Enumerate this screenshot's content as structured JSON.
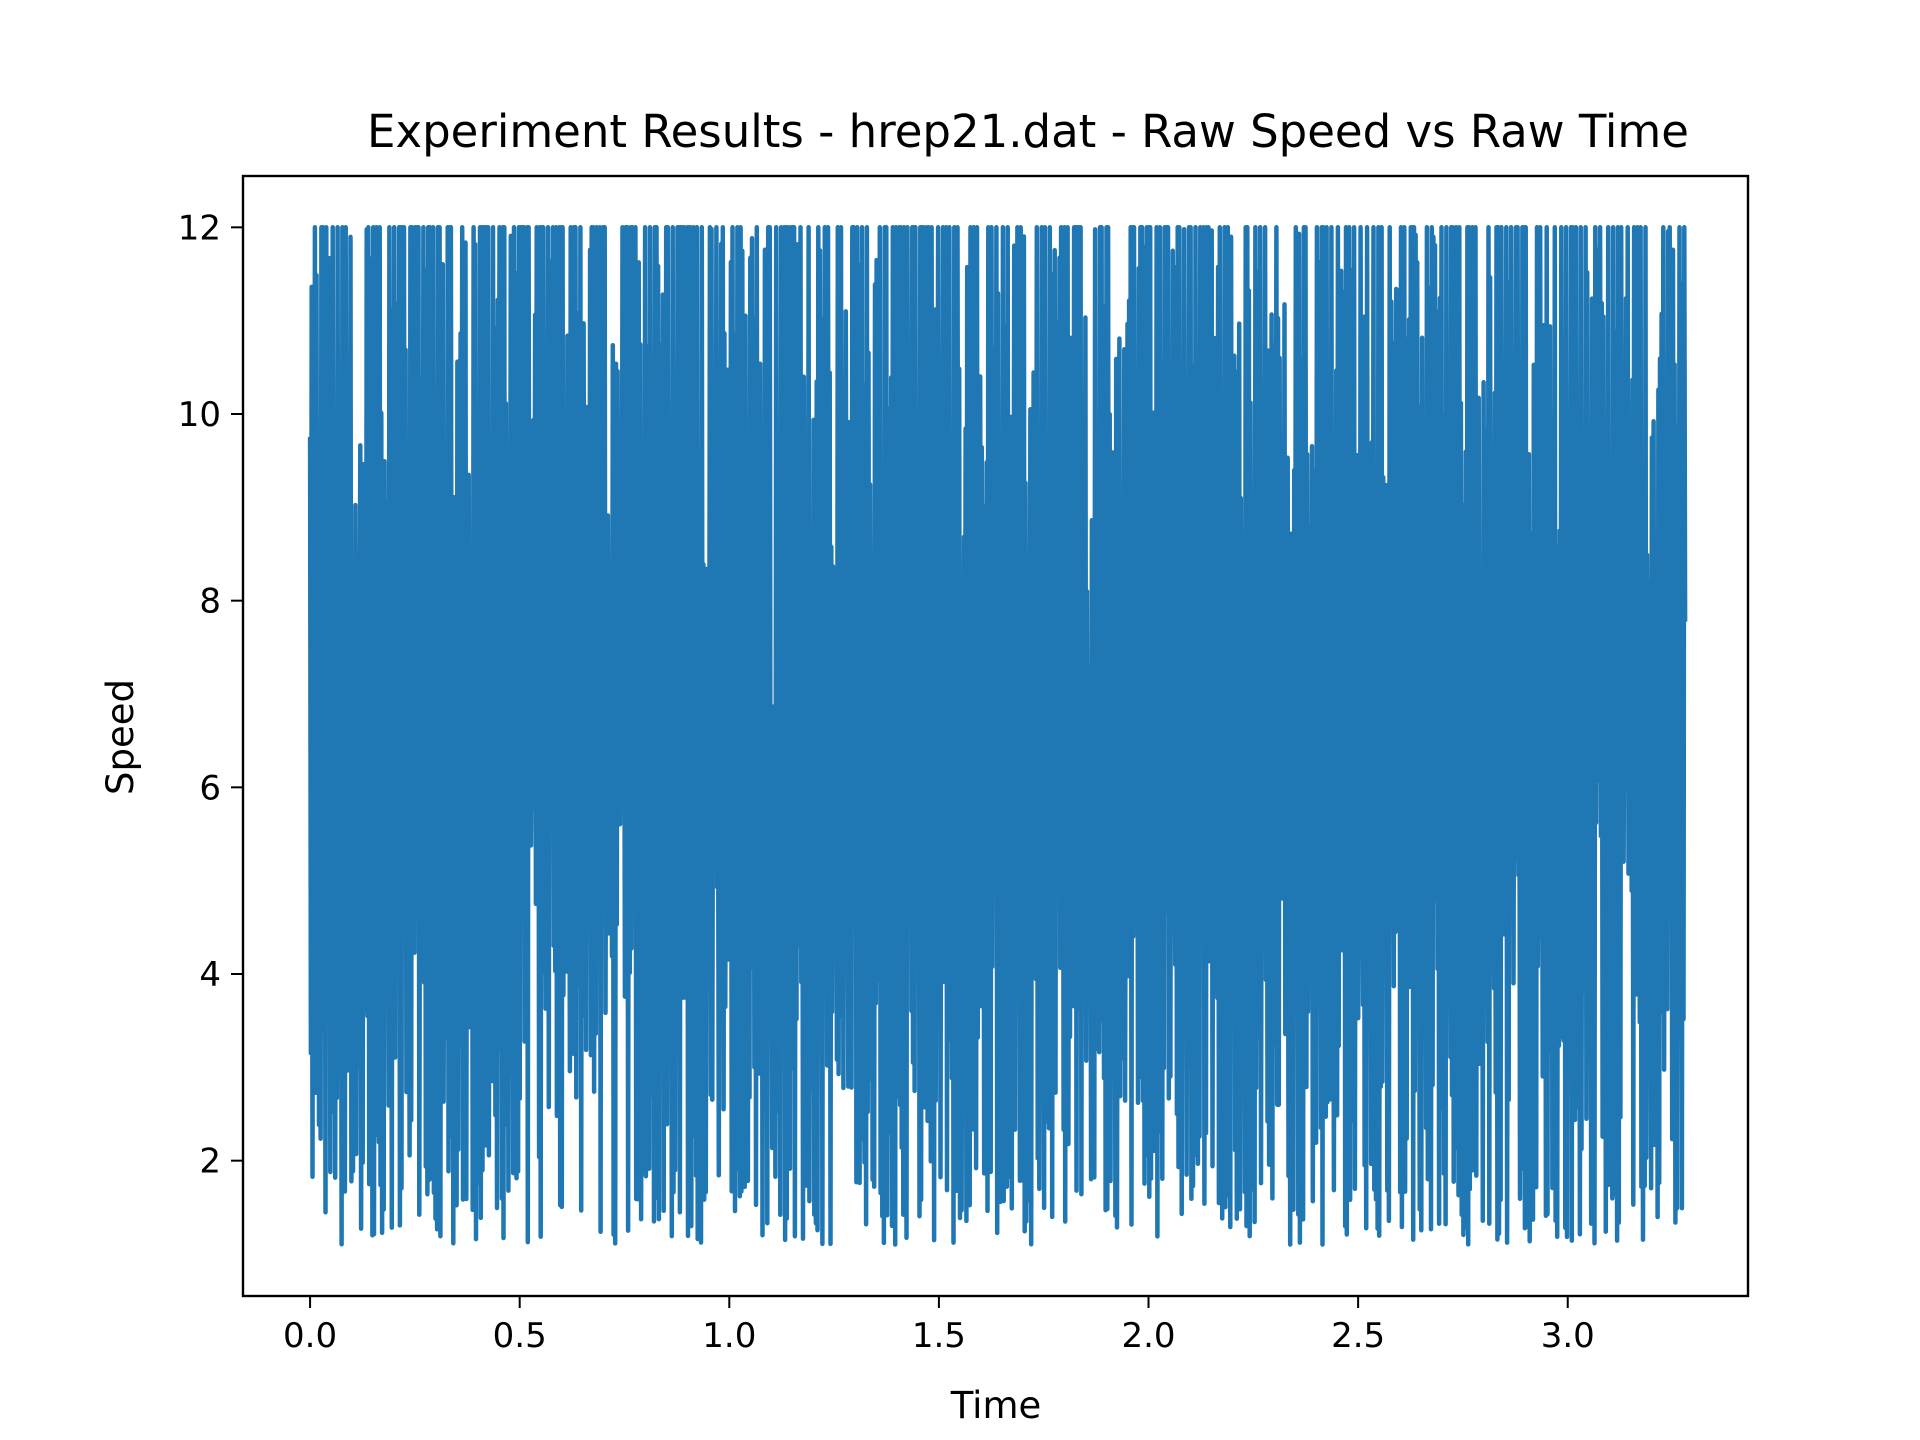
{
  "chart_data": {
    "type": "line",
    "title": "Experiment Results - hrep21.dat - Raw Speed vs Raw Time",
    "xlabel": "Time",
    "ylabel": "Speed",
    "xlim": [
      -0.16,
      3.43
    ],
    "ylim": [
      0.55,
      12.55
    ],
    "xticks": [
      0.0,
      0.5,
      1.0,
      1.5,
      2.0,
      2.5,
      3.0
    ],
    "xtick_labels": [
      "0.0",
      "0.5",
      "1.0",
      "1.5",
      "2.0",
      "2.5",
      "3.0"
    ],
    "yticks": [
      2,
      4,
      6,
      8,
      10,
      12
    ],
    "ytick_labels": [
      "2",
      "4",
      "6",
      "8",
      "10",
      "12"
    ],
    "grid": false,
    "legend": "none",
    "series": [
      {
        "color": "#1f77b4",
        "x_range": [
          0.0,
          3.28
        ],
        "y_range": [
          1.1,
          12.0
        ],
        "sample_points": [
          [
            0.0,
            10.8
          ],
          [
            0.01,
            4.5
          ],
          [
            0.02,
            11.4
          ],
          [
            0.03,
            2.9
          ],
          [
            0.04,
            12.0
          ],
          [
            0.05,
            2.2
          ],
          [
            0.06,
            11.9
          ],
          [
            0.08,
            3.5
          ],
          [
            0.1,
            12.0
          ],
          [
            0.12,
            1.8
          ],
          [
            0.15,
            11.8
          ],
          [
            0.18,
            2.5
          ],
          [
            0.2,
            12.0
          ],
          [
            0.23,
            1.1
          ],
          [
            0.25,
            11.9
          ],
          [
            0.28,
            1.5
          ],
          [
            0.3,
            12.0
          ],
          [
            0.33,
            1.9
          ],
          [
            0.35,
            12.0
          ],
          [
            0.38,
            1.4
          ],
          [
            0.4,
            11.5
          ],
          [
            0.45,
            1.4
          ],
          [
            0.5,
            12.0
          ],
          [
            0.55,
            2.0
          ],
          [
            0.6,
            12.0
          ],
          [
            0.63,
            1.3
          ],
          [
            0.65,
            11.9
          ],
          [
            0.7,
            1.5
          ],
          [
            0.75,
            12.0
          ],
          [
            0.8,
            1.6
          ],
          [
            0.85,
            11.9
          ],
          [
            0.9,
            2.0
          ],
          [
            0.93,
            1.4
          ],
          [
            0.95,
            12.0
          ],
          [
            1.0,
            1.2
          ],
          [
            1.05,
            11.9
          ],
          [
            1.1,
            2.0
          ],
          [
            1.15,
            12.0
          ],
          [
            1.2,
            1.8
          ],
          [
            1.25,
            12.0
          ],
          [
            1.3,
            1.2
          ],
          [
            1.35,
            11.8
          ],
          [
            1.4,
            1.8
          ],
          [
            1.45,
            12.0
          ],
          [
            1.5,
            1.5
          ],
          [
            1.55,
            12.0
          ],
          [
            1.6,
            1.6
          ],
          [
            1.65,
            11.9
          ],
          [
            1.7,
            1.3
          ],
          [
            1.75,
            12.0
          ],
          [
            1.8,
            1.5
          ],
          [
            1.85,
            12.0
          ],
          [
            1.9,
            1.6
          ],
          [
            1.95,
            11.9
          ],
          [
            2.0,
            1.3
          ],
          [
            2.05,
            12.0
          ],
          [
            2.1,
            1.5
          ],
          [
            2.15,
            11.9
          ],
          [
            2.2,
            1.2
          ],
          [
            2.25,
            12.0
          ],
          [
            2.3,
            1.5
          ],
          [
            2.35,
            11.9
          ],
          [
            2.4,
            1.4
          ],
          [
            2.45,
            12.0
          ],
          [
            2.5,
            1.2
          ],
          [
            2.55,
            12.0
          ],
          [
            2.6,
            1.2
          ],
          [
            2.65,
            11.9
          ],
          [
            2.7,
            1.6
          ],
          [
            2.75,
            12.0
          ],
          [
            2.8,
            1.5
          ],
          [
            2.83,
            1.1
          ],
          [
            2.85,
            12.0
          ],
          [
            2.9,
            1.7
          ],
          [
            2.95,
            12.0
          ],
          [
            3.0,
            1.8
          ],
          [
            3.05,
            12.0
          ],
          [
            3.1,
            1.9
          ],
          [
            3.15,
            12.0
          ],
          [
            3.2,
            1.7
          ],
          [
            3.25,
            1.2
          ],
          [
            3.27,
            11.9
          ],
          [
            3.28,
            7.8
          ]
        ]
      }
    ]
  }
}
